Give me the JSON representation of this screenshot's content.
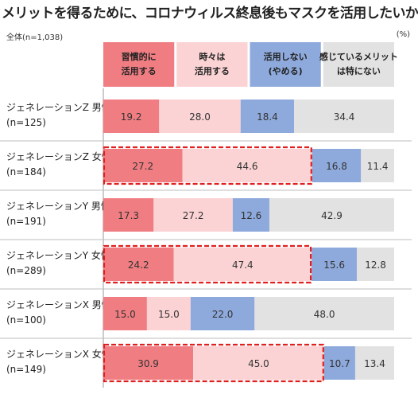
{
  "title": "メリットを得るために、コロナウィルス終息後もマスクを活用したいか",
  "base_note": "全体(n=1,038)",
  "unit": "(%)",
  "chart_data": {
    "type": "bar",
    "orientation": "horizontal",
    "stacked": "100%",
    "title": "メリットを得るために、コロナウィルス終息後もマスクを活用したいか",
    "categories": [
      [
        "ジェネレーションZ 男性",
        "(n=125)"
      ],
      [
        "ジェネレーションZ 女性",
        "(n=184)"
      ],
      [
        "ジェネレーションY 男性",
        "(n=191)"
      ],
      [
        "ジェネレーションY 女性",
        "(n=289)"
      ],
      [
        "ジェネレーションX 男性",
        "(n=100)"
      ],
      [
        "ジェネレーションX 女性",
        "(n=149)"
      ]
    ],
    "series": [
      {
        "name": [
          "習慣的に",
          "活用する"
        ],
        "color": "#f07d82",
        "values": [
          19.2,
          27.2,
          17.3,
          24.2,
          15.0,
          30.9
        ]
      },
      {
        "name": [
          "時々は",
          "活用する"
        ],
        "color": "#fbd3d4",
        "values": [
          28.0,
          44.6,
          27.2,
          47.4,
          15.0,
          45.0
        ]
      },
      {
        "name": [
          "活用しない",
          "(やめる)"
        ],
        "color": "#8eaadc",
        "values": [
          18.4,
          16.8,
          12.6,
          15.6,
          22.0,
          10.7
        ]
      },
      {
        "name": [
          "感じているメリット",
          "は特にない"
        ],
        "color": "#e2e2e2",
        "values": [
          34.4,
          11.4,
          42.9,
          12.8,
          48.0,
          13.4
        ]
      }
    ],
    "highlighted_categories": [
      1,
      3,
      5
    ],
    "highlight_color": "#e02020",
    "xlim": [
      0,
      100
    ],
    "legend": "top"
  }
}
